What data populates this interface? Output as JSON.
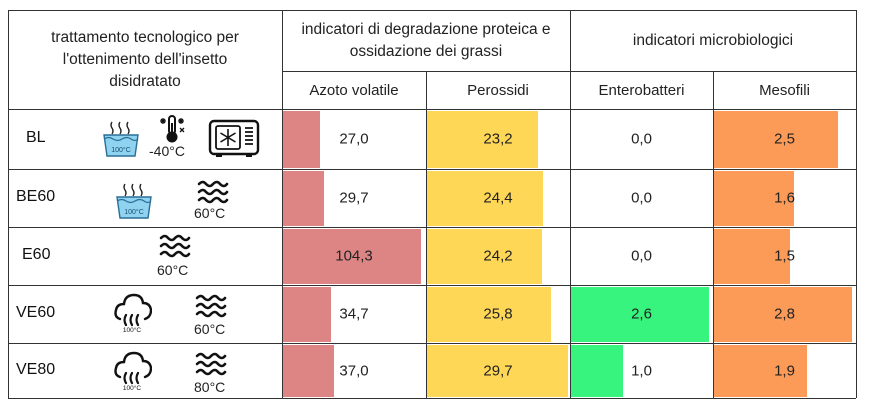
{
  "header": {
    "treatment": "trattamento tecnologico per l'ottenimento dell'insetto disidratato",
    "group1": "indicatori di degradazione proteica e ossidazione dei grassi",
    "group2": "indicatori microbiologici",
    "columns": [
      "Azoto volatile",
      "Perossidi",
      "Enterobatteri",
      "Mesofili"
    ]
  },
  "colors": {
    "azoto": "#dd8585",
    "perossidi": "#fed756",
    "enterobatteri": "#36f47d",
    "mesofili": "#fb9b57",
    "border": "#333333"
  },
  "icon_labels": {
    "bath": "100°C",
    "steam": "100°C"
  },
  "rows": [
    {
      "name": "BL",
      "icons": [
        "water-bath-icon",
        "thermometer-snowflake-icon",
        "freeze-dryer-icon"
      ],
      "temp_label": "-40°C",
      "values": [
        {
          "text": "27,0",
          "fill": 0.26
        },
        {
          "text": "23,2",
          "fill": 0.78
        },
        {
          "text": "0,0",
          "fill": 0.0
        },
        {
          "text": "2,5",
          "fill": 0.88
        }
      ]
    },
    {
      "name": "BE60",
      "icons": [
        "water-bath-icon",
        "oven-heat-icon"
      ],
      "temp_label": "60°C",
      "values": [
        {
          "text": "29,7",
          "fill": 0.29
        },
        {
          "text": "24,4",
          "fill": 0.82
        },
        {
          "text": "0,0",
          "fill": 0.0
        },
        {
          "text": "1,6",
          "fill": 0.57
        }
      ]
    },
    {
      "name": "E60",
      "icons": [
        "oven-heat-icon"
      ],
      "temp_label": "60°C",
      "values": [
        {
          "text": "104,3",
          "fill": 0.97
        },
        {
          "text": "24,2",
          "fill": 0.81
        },
        {
          "text": "0,0",
          "fill": 0.0
        },
        {
          "text": "1,5",
          "fill": 0.54
        }
      ]
    },
    {
      "name": "VE60",
      "icons": [
        "steam-icon",
        "oven-heat-icon"
      ],
      "temp_label": "60°C",
      "values": [
        {
          "text": "34,7",
          "fill": 0.34
        },
        {
          "text": "25,8",
          "fill": 0.87
        },
        {
          "text": "2,6",
          "fill": 0.98
        },
        {
          "text": "2,8",
          "fill": 0.98
        }
      ]
    },
    {
      "name": "VE80",
      "icons": [
        "steam-icon",
        "oven-heat-icon"
      ],
      "temp_label": "80°C",
      "values": [
        {
          "text": "37,0",
          "fill": 0.36
        },
        {
          "text": "29,7",
          "fill": 0.99
        },
        {
          "text": "1,0",
          "fill": 0.37
        },
        {
          "text": "1,9",
          "fill": 0.66
        }
      ]
    }
  ]
}
